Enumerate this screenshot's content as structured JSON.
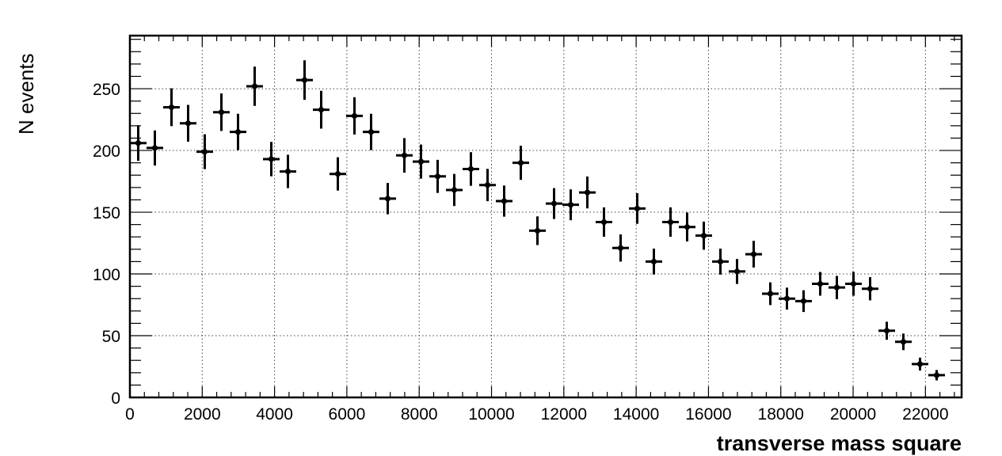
{
  "chart_data": {
    "type": "scatter",
    "title": "",
    "xlabel": "transverse mass square",
    "ylabel": "N events",
    "xlim": [
      0,
      23000
    ],
    "ylim": [
      0,
      293
    ],
    "grid": true,
    "legend": "none",
    "color": "#000000",
    "xticks": [
      0,
      2000,
      4000,
      6000,
      8000,
      10000,
      12000,
      14000,
      16000,
      18000,
      20000,
      22000
    ],
    "xtick_labels": [
      "0",
      "2000",
      "4000",
      "6000",
      "8000",
      "10000",
      "12000",
      "14000",
      "16000",
      "18000",
      "20000",
      "22000"
    ],
    "yticks": [
      0,
      50,
      100,
      150,
      200,
      250
    ],
    "ytick_labels": [
      "0",
      "50",
      "100",
      "150",
      "200",
      "250"
    ],
    "bin_width": 460,
    "x": [
      230,
      690,
      1150,
      1610,
      2070,
      2530,
      2990,
      3450,
      3910,
      4370,
      4830,
      5290,
      5750,
      6210,
      6670,
      7130,
      7590,
      8050,
      8510,
      8970,
      9430,
      9890,
      10350,
      10810,
      11270,
      11730,
      12190,
      12650,
      13110,
      13570,
      14030,
      14490,
      14950,
      15410,
      15870,
      16330,
      16790,
      17250,
      17710,
      18170,
      18630,
      19090,
      19550,
      20010,
      20470,
      20930,
      21390,
      21850,
      22310
    ],
    "y": [
      206,
      202,
      235,
      222,
      199,
      231,
      215,
      252,
      193,
      183,
      257,
      233,
      181,
      228,
      215,
      161,
      196,
      191,
      179,
      168,
      185,
      172,
      159,
      190,
      135,
      157,
      156,
      166,
      142,
      121,
      153,
      110,
      142,
      138,
      131,
      110,
      102,
      116,
      84,
      80,
      78,
      92,
      89,
      92,
      88,
      54,
      45,
      27,
      18
    ],
    "yerr": [
      14.4,
      14.2,
      15.3,
      14.9,
      14.1,
      15.2,
      14.7,
      15.9,
      13.9,
      13.5,
      16.0,
      15.3,
      13.5,
      15.1,
      14.7,
      12.7,
      14.0,
      13.8,
      13.4,
      13.0,
      13.6,
      13.1,
      12.6,
      13.8,
      11.6,
      12.5,
      12.5,
      12.9,
      11.9,
      11.0,
      12.4,
      10.5,
      11.9,
      11.7,
      11.4,
      10.5,
      10.1,
      10.8,
      9.2,
      8.9,
      8.8,
      9.6,
      9.4,
      9.6,
      9.4,
      7.3,
      6.7,
      5.2,
      4.2
    ]
  }
}
